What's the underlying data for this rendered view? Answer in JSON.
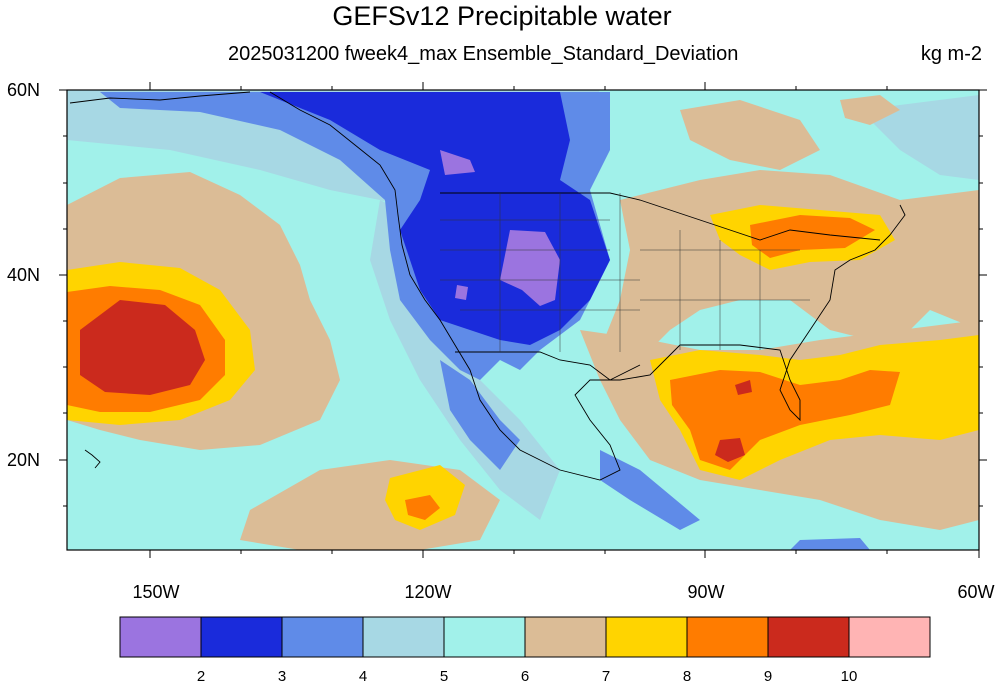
{
  "header": {
    "title": "GEFSv12 Precipitable water",
    "subtitle": "2025031200 fweek4_max Ensemble_Standard_Deviation",
    "units": "kg m-2"
  },
  "axes": {
    "lat_labels": [
      "60N",
      "40N",
      "20N"
    ],
    "lon_labels": [
      "150W",
      "120W",
      "90W",
      "60W"
    ]
  },
  "colorbar": {
    "labels": [
      "2",
      "3",
      "4",
      "5",
      "6",
      "7",
      "8",
      "9",
      "10"
    ],
    "colors": [
      "#9b74e0",
      "#1a2bdb",
      "#5f8be8",
      "#a7d8e4",
      "#a1f1ea",
      "#dbbc96",
      "#ffd400",
      "#ff7c00",
      "#cb2a1d",
      "#ffb4b4"
    ]
  },
  "map": {
    "projection": "cylindrical-equidistant",
    "lon_range": [
      -160,
      -60
    ],
    "lat_range": [
      10,
      60
    ]
  }
}
